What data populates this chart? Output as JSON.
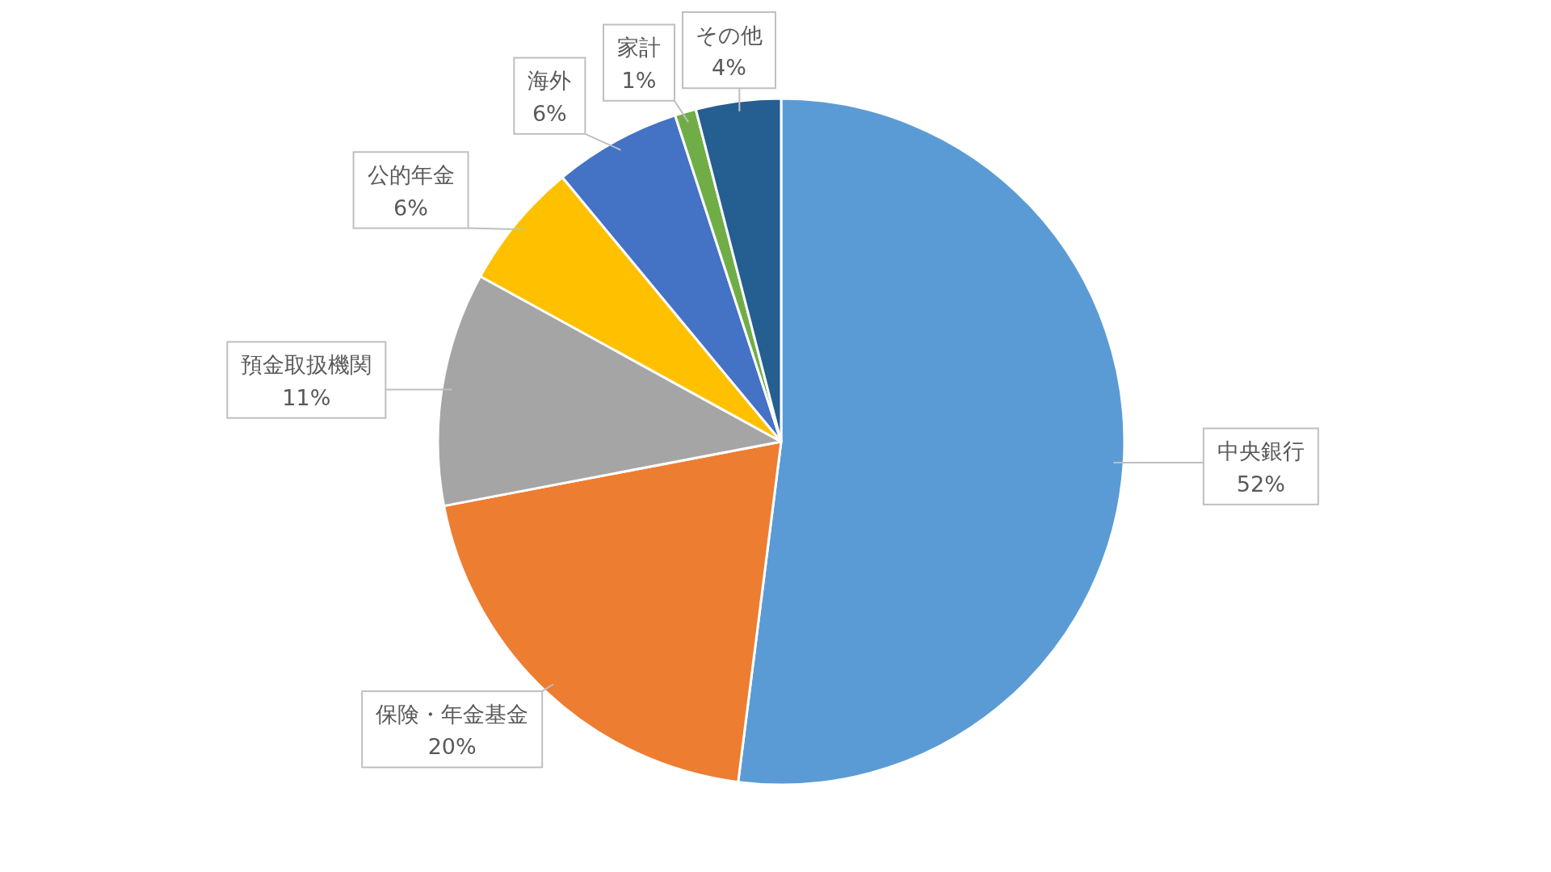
{
  "chart_data": {
    "type": "pie",
    "categories": [
      "中央銀行",
      "保険・年金基金",
      "預金取扱機関",
      "公的年金",
      "海外",
      "家計",
      "その他"
    ],
    "values": [
      52,
      20,
      11,
      6,
      6,
      1,
      4
    ],
    "colors": [
      "#5b9bd5",
      "#ed7d31",
      "#a5a5a5",
      "#ffc000",
      "#4472c4",
      "#70ad47",
      "#255e91"
    ],
    "value_labels": [
      "52%",
      "20%",
      "11%",
      "6%",
      "6%",
      "1%",
      "4%"
    ]
  }
}
